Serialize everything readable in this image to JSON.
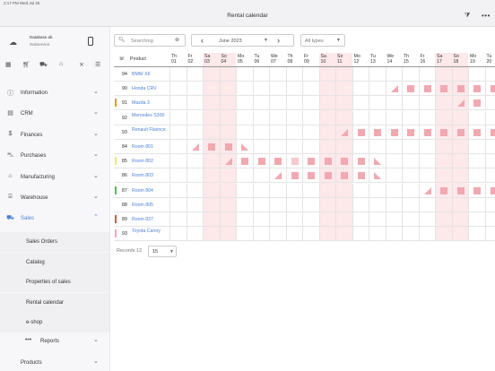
{
  "status": {
    "left": "2:17 PM  Wed Jul 26"
  },
  "topbar": {
    "title": "Rental calendar",
    "filter_icon": "filter-icon",
    "more_icon": "more-icon"
  },
  "account": {
    "database": "Database ab",
    "subtitle": "Subservice"
  },
  "menu": [
    {
      "key": "information",
      "label": "Information",
      "icon": "info-icon"
    },
    {
      "key": "crm",
      "label": "CRM",
      "icon": "crm-icon"
    },
    {
      "key": "finances",
      "label": "Finances",
      "icon": "dollar-icon"
    },
    {
      "key": "purchases",
      "label": "Purchases",
      "icon": "cart-icon"
    },
    {
      "key": "manufacturing",
      "label": "Manufacturing",
      "icon": "factory-icon"
    },
    {
      "key": "warehouse",
      "label": "Warehouse",
      "icon": "warehouse-icon"
    },
    {
      "key": "sales",
      "label": "Sales",
      "icon": "truck-icon"
    }
  ],
  "sales_sub": [
    "Sales Orders",
    "Catalog",
    "Properties of sales",
    "Rental calendar",
    "e-shop"
  ],
  "reports": "Reports",
  "products": "Products",
  "toolbar": {
    "search_placeholder": "Searching",
    "month": "June 2023",
    "types": "All types"
  },
  "columns": {
    "id": "Id",
    "product": "Product"
  },
  "days": [
    {
      "w": "Th",
      "d": "01",
      "we": false
    },
    {
      "w": "Fr",
      "d": "02",
      "we": false
    },
    {
      "w": "Sa",
      "d": "03",
      "we": true
    },
    {
      "w": "So",
      "d": "04",
      "we": true
    },
    {
      "w": "Mo",
      "d": "05",
      "we": false
    },
    {
      "w": "Tu",
      "d": "06",
      "we": false
    },
    {
      "w": "We",
      "d": "07",
      "we": false
    },
    {
      "w": "Th",
      "d": "08",
      "we": false
    },
    {
      "w": "Fr",
      "d": "09",
      "we": false
    },
    {
      "w": "Sa",
      "d": "10",
      "we": true
    },
    {
      "w": "So",
      "d": "11",
      "we": true
    },
    {
      "w": "Mo",
      "d": "12",
      "we": false
    },
    {
      "w": "Tu",
      "d": "13",
      "we": false
    },
    {
      "w": "We",
      "d": "14",
      "we": false
    },
    {
      "w": "Th",
      "d": "15",
      "we": false
    },
    {
      "w": "Fr",
      "d": "16",
      "we": false
    },
    {
      "w": "Sa",
      "d": "17",
      "we": true
    },
    {
      "w": "So",
      "d": "18",
      "we": true
    },
    {
      "w": "Mo",
      "d": "19",
      "we": false
    },
    {
      "w": "Tu",
      "d": "20",
      "we": false
    }
  ],
  "rows": [
    {
      "id": "94",
      "product": "BMW X6",
      "color": "",
      "cells": {}
    },
    {
      "id": "90",
      "product": "Honda CRV",
      "color": "",
      "cells": {
        "13": "tri",
        "14": "sq",
        "15": "sq",
        "16": "sq",
        "17": "sq",
        "18": "sq",
        "19": "sq"
      }
    },
    {
      "id": "91",
      "product": "Mazda 3",
      "color": "#d4a017",
      "cells": {
        "17": "tri",
        "18": "sq"
      }
    },
    {
      "id": "92",
      "product": "Mercedes S300",
      "color": "",
      "cells": {}
    },
    {
      "id": "93",
      "product": "Renault Fluence",
      "color": "",
      "cells": {
        "10": "tri",
        "11": "sq",
        "12": "sq",
        "13": "sq",
        "14": "sq",
        "15": "sq",
        "16": "sq",
        "17": "sq",
        "18": "sq",
        "19": "sq"
      }
    },
    {
      "id": "84",
      "product": "Room 801",
      "color": "",
      "cells": {
        "1": "tri",
        "2": "sq",
        "3": "sq",
        "4": "tri2"
      }
    },
    {
      "id": "85",
      "product": "Room 802",
      "color": "#f0e68c",
      "cells": {
        "3": "tri",
        "4": "sq",
        "5": "sq",
        "6": "sq",
        "7": "sqd",
        "8": "sq",
        "9": "sq",
        "10": "sq",
        "11": "sq",
        "12": "tri2"
      }
    },
    {
      "id": "86",
      "product": "Room 803",
      "color": "",
      "cells": {
        "6": "tri",
        "7": "sq",
        "8": "sq",
        "9": "sq",
        "10": "sq",
        "11": "sq",
        "12": "tri2"
      }
    },
    {
      "id": "87",
      "product": "Room 804",
      "color": "#5cb85c",
      "cells": {
        "15": "tri",
        "16": "sq",
        "17": "sq",
        "18": "sq",
        "19": "sq"
      }
    },
    {
      "id": "88",
      "product": "Room 805",
      "color": "",
      "cells": {}
    },
    {
      "id": "89",
      "product": "Room 837",
      "color": "#d9534f",
      "cells": {}
    },
    {
      "id": "93",
      "product": "Toyota Camry",
      "color": "#f4a6b5",
      "cells": {}
    }
  ],
  "footer": {
    "records_label": "Records 12",
    "per_page": "15"
  }
}
